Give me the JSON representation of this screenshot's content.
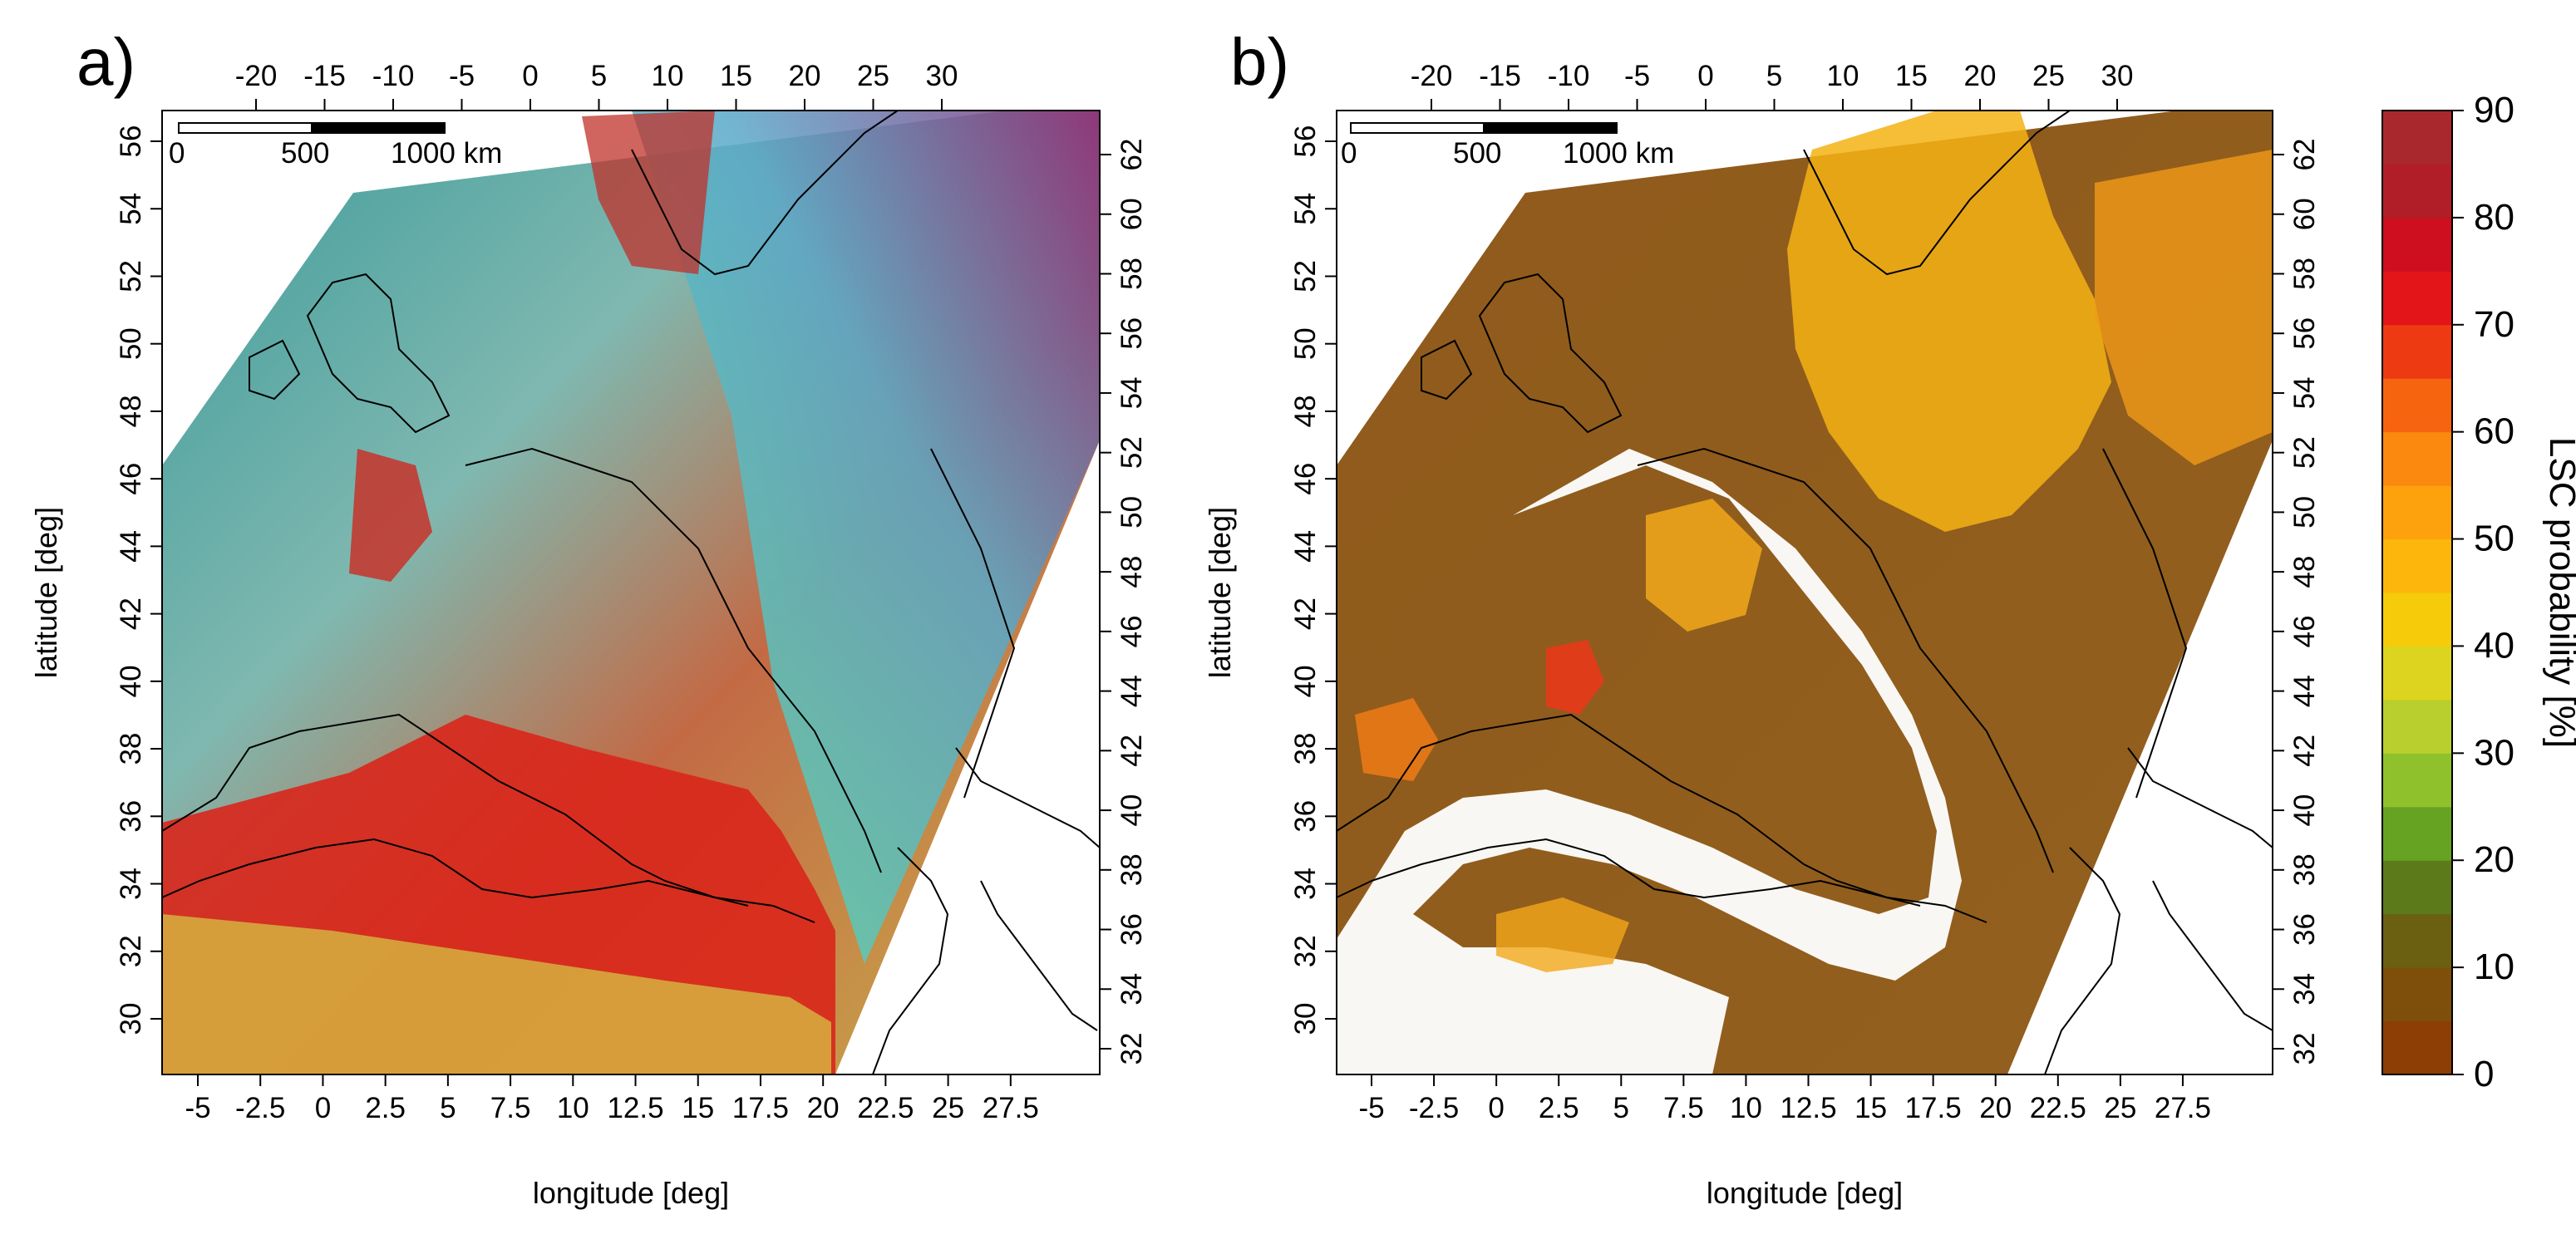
{
  "chart_data": [
    {
      "panel": "a)",
      "type": "heatmap",
      "description_kind": "false-colour RGB satellite composite on a map",
      "xlabel": "longitude [deg]",
      "ylabel": "latitude [deg]",
      "bottom_ticks": [
        "-5",
        "-2.5",
        "0",
        "2.5",
        "5",
        "7.5",
        "10",
        "12.5",
        "15",
        "17.5",
        "20",
        "22.5",
        "25",
        "27.5"
      ],
      "left_ticks": [
        "30",
        "32",
        "34",
        "36",
        "38",
        "40",
        "42",
        "44",
        "46",
        "48",
        "50",
        "52",
        "54",
        "56"
      ],
      "top_ticks": [
        "-20",
        "-15",
        "-10",
        "-5",
        "0",
        "5",
        "10",
        "15",
        "20",
        "25",
        "30"
      ],
      "right_ticks": [
        "32",
        "34",
        "36",
        "38",
        "40",
        "42",
        "44",
        "46",
        "48",
        "50",
        "52",
        "54",
        "56",
        "58",
        "60",
        "62"
      ],
      "xlim": [
        -6,
        30
      ],
      "ylim": [
        28.5,
        57
      ],
      "scale_bar": {
        "labels": [
          "0",
          "500",
          "1000 km"
        ]
      }
    },
    {
      "panel": "b)",
      "type": "heatmap",
      "description_kind": "gridded LSC probability on a map",
      "xlabel": "longitude [deg]",
      "ylabel": "latitude [deg]",
      "bottom_ticks": [
        "-5",
        "-2.5",
        "0",
        "2.5",
        "5",
        "7.5",
        "10",
        "12.5",
        "15",
        "17.5",
        "20",
        "22.5",
        "25",
        "27.5"
      ],
      "left_ticks": [
        "30",
        "32",
        "34",
        "36",
        "38",
        "40",
        "42",
        "44",
        "46",
        "48",
        "50",
        "52",
        "54",
        "56"
      ],
      "top_ticks": [
        "-20",
        "-15",
        "-10",
        "-5",
        "0",
        "5",
        "10",
        "15",
        "20",
        "25",
        "30"
      ],
      "right_ticks": [
        "32",
        "34",
        "36",
        "38",
        "40",
        "42",
        "44",
        "46",
        "48",
        "50",
        "52",
        "54",
        "56",
        "58",
        "60",
        "62"
      ],
      "xlim": [
        -6,
        30
      ],
      "ylim": [
        28.5,
        57
      ],
      "scale_bar": {
        "labels": [
          "0",
          "500",
          "1000 km"
        ]
      },
      "colorbar": {
        "label": "LSC probability [%]",
        "range": [
          0,
          90
        ],
        "ticks": [
          "0",
          "10",
          "20",
          "30",
          "40",
          "50",
          "60",
          "70",
          "80",
          "90"
        ],
        "colors": [
          "#8c3e05",
          "#7e4f0a",
          "#6b5f12",
          "#5c7a1a",
          "#66a323",
          "#8fc12d",
          "#b8cf2e",
          "#dcd41e",
          "#f6cb0a",
          "#fdb70c",
          "#fda10d",
          "#fb880f",
          "#f76410",
          "#ee3a13",
          "#e31518",
          "#cd0f1f",
          "#b21e27",
          "#a9282e"
        ]
      }
    }
  ]
}
